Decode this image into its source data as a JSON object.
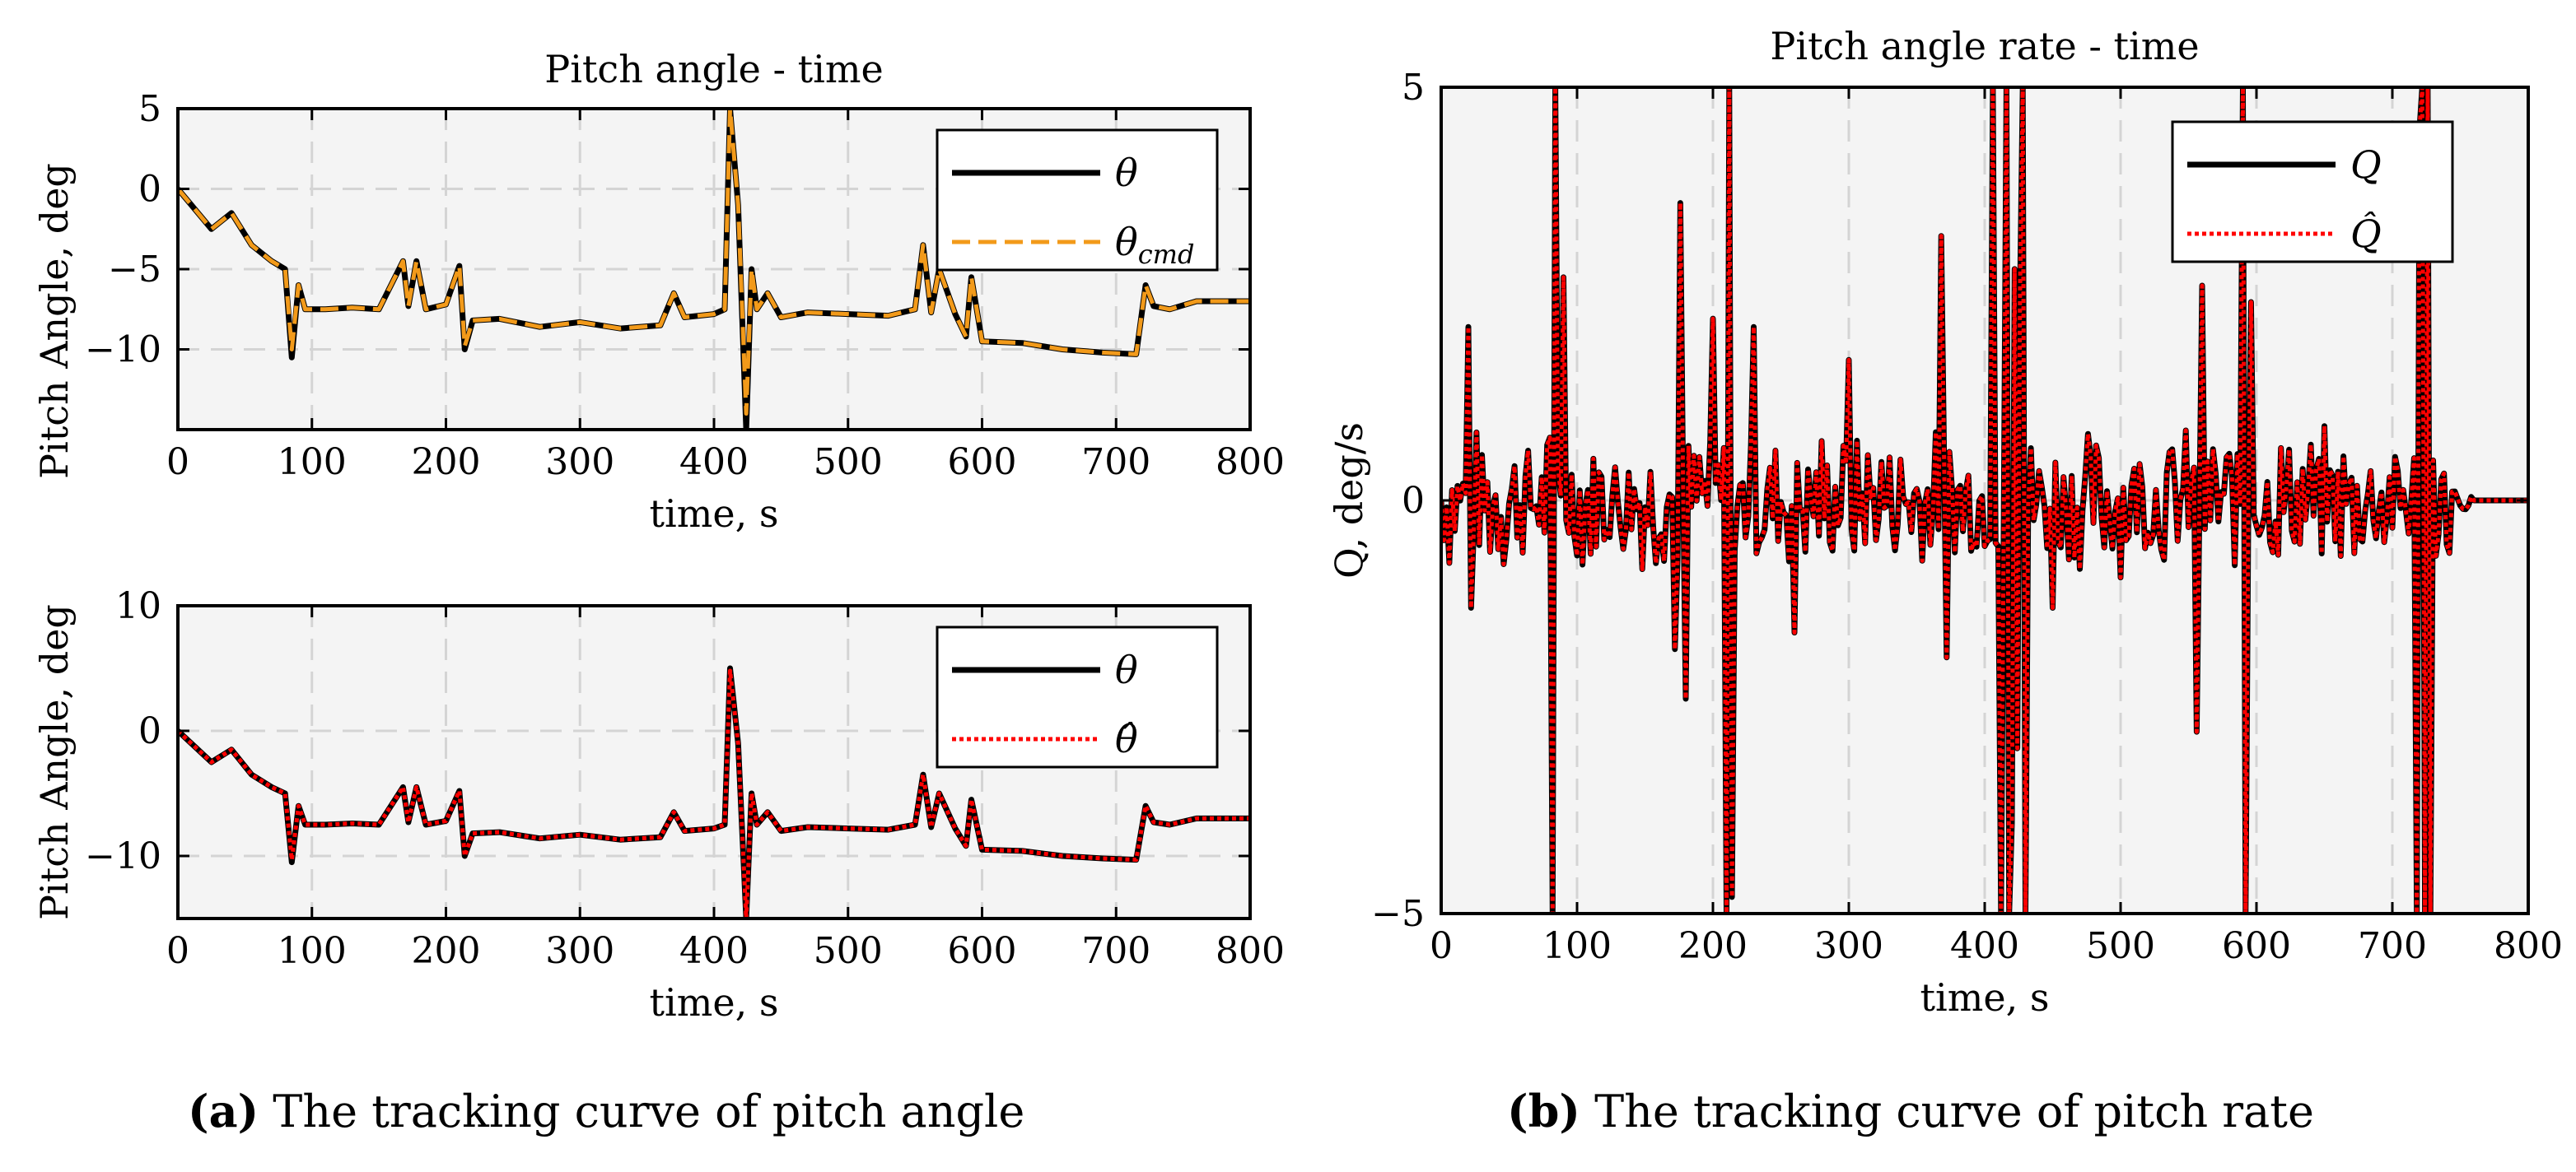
{
  "captions": {
    "a": {
      "tag": "a",
      "text": "The tracking curve of pitch angle"
    },
    "b": {
      "tag": "b",
      "text": "The tracking curve of pitch rate"
    }
  },
  "colors": {
    "background": "#f4f4f4",
    "grid": "#d4d4d4",
    "black": "#000000",
    "orange": "#f29a1a",
    "red": "#ff0000"
  },
  "chart_data": [
    {
      "type": "line",
      "title": "Pitch angle - time",
      "xlabel": "time, s",
      "ylabel": "Pitch Angle, deg",
      "xlim": [
        0,
        800
      ],
      "ylim": [
        -15,
        5
      ],
      "xticks": [
        0,
        100,
        200,
        300,
        400,
        500,
        600,
        700,
        800
      ],
      "yticks": [
        5,
        0,
        -5,
        -10
      ],
      "grid": true,
      "legend": "top-right",
      "series": [
        {
          "name": "θ",
          "style": "solid",
          "color": "#000000",
          "x": [
            0,
            10,
            25,
            40,
            55,
            70,
            80,
            85,
            90,
            95,
            110,
            130,
            150,
            168,
            172,
            178,
            185,
            200,
            210,
            214,
            220,
            240,
            270,
            300,
            330,
            360,
            370,
            378,
            400,
            408,
            412,
            418,
            424,
            428,
            432,
            440,
            450,
            470,
            500,
            530,
            550,
            556,
            562,
            568,
            580,
            588,
            592,
            600,
            630,
            660,
            690,
            715,
            722,
            728,
            740,
            760,
            800
          ],
          "y": [
            0,
            -1,
            -2.5,
            -1.5,
            -3.5,
            -4.5,
            -5,
            -10.5,
            -6,
            -7.5,
            -7.5,
            -7.4,
            -7.5,
            -4.5,
            -7.3,
            -4.5,
            -7.5,
            -7.2,
            -4.8,
            -10,
            -8.2,
            -8.1,
            -8.6,
            -8.3,
            -8.7,
            -8.5,
            -6.5,
            -8,
            -7.8,
            -7.5,
            5,
            -1,
            -15,
            -5,
            -7.5,
            -6.5,
            -8,
            -7.7,
            -7.8,
            -7.9,
            -7.5,
            -3.5,
            -7.7,
            -5,
            -7.8,
            -9.2,
            -5.5,
            -9.5,
            -9.6,
            -10,
            -10.2,
            -10.3,
            -6,
            -7.3,
            -7.5,
            -7,
            -7
          ]
        },
        {
          "name": "θ_cmd",
          "style": "dashed",
          "color": "#f29a1a",
          "x": [
            0,
            10,
            25,
            40,
            55,
            70,
            80,
            85,
            90,
            95,
            110,
            130,
            150,
            168,
            172,
            178,
            185,
            200,
            210,
            214,
            220,
            240,
            270,
            300,
            330,
            360,
            370,
            378,
            400,
            408,
            412,
            418,
            424,
            428,
            432,
            440,
            450,
            470,
            500,
            530,
            550,
            556,
            562,
            568,
            580,
            588,
            592,
            600,
            630,
            660,
            690,
            715,
            722,
            728,
            740,
            760,
            800
          ],
          "y": [
            0,
            -1,
            -2.5,
            -1.5,
            -3.5,
            -4.5,
            -5,
            -10,
            -6,
            -7.5,
            -7.5,
            -7.4,
            -7.5,
            -4.5,
            -7.3,
            -4.5,
            -7.5,
            -7.2,
            -4.8,
            -9.8,
            -8.2,
            -8.1,
            -8.6,
            -8.3,
            -8.7,
            -8.5,
            -6.5,
            -8,
            -7.8,
            -7.5,
            5,
            -1,
            -14,
            -5,
            -7.5,
            -6.5,
            -8,
            -7.7,
            -7.8,
            -7.9,
            -7.5,
            -3.5,
            -7.7,
            -5,
            -7.8,
            -9.2,
            -5.5,
            -9.5,
            -9.6,
            -10,
            -10.2,
            -10.3,
            -6,
            -7.3,
            -7.5,
            -7,
            -7
          ]
        }
      ],
      "legend_entries": [
        {
          "label": "θ"
        },
        {
          "label": "θcmd"
        }
      ]
    },
    {
      "type": "line",
      "title": "",
      "xlabel": "time, s",
      "ylabel": "Pitch Angle, deg",
      "xlim": [
        0,
        800
      ],
      "ylim": [
        -15,
        10
      ],
      "xticks": [
        0,
        100,
        200,
        300,
        400,
        500,
        600,
        700,
        800
      ],
      "yticks": [
        10,
        0,
        -10
      ],
      "grid": true,
      "legend": "top-right",
      "series": [
        {
          "name": "θ",
          "style": "solid",
          "color": "#000000",
          "x": [
            0,
            10,
            25,
            40,
            55,
            70,
            80,
            85,
            90,
            95,
            110,
            130,
            150,
            168,
            172,
            178,
            185,
            200,
            210,
            214,
            220,
            240,
            270,
            300,
            330,
            360,
            370,
            378,
            400,
            408,
            412,
            418,
            424,
            428,
            432,
            440,
            450,
            470,
            500,
            530,
            550,
            556,
            562,
            568,
            580,
            588,
            592,
            600,
            630,
            660,
            690,
            715,
            722,
            728,
            740,
            760,
            800
          ],
          "y": [
            0,
            -1,
            -2.5,
            -1.5,
            -3.5,
            -4.5,
            -5,
            -10.5,
            -6,
            -7.5,
            -7.5,
            -7.4,
            -7.5,
            -4.5,
            -7.3,
            -4.5,
            -7.5,
            -7.2,
            -4.8,
            -10,
            -8.2,
            -8.1,
            -8.6,
            -8.3,
            -8.7,
            -8.5,
            -6.5,
            -8,
            -7.8,
            -7.5,
            5,
            -1,
            -15,
            -5,
            -7.5,
            -6.5,
            -8,
            -7.7,
            -7.8,
            -7.9,
            -7.5,
            -3.5,
            -7.7,
            -5,
            -7.8,
            -9.2,
            -5.5,
            -9.5,
            -9.6,
            -10,
            -10.2,
            -10.3,
            -6,
            -7.3,
            -7.5,
            -7,
            -7
          ]
        },
        {
          "name": "θ̂",
          "style": "dotted",
          "color": "#ff0000",
          "x": [
            0,
            10,
            25,
            40,
            55,
            70,
            80,
            85,
            90,
            95,
            110,
            130,
            150,
            168,
            172,
            178,
            185,
            200,
            210,
            214,
            220,
            240,
            270,
            300,
            330,
            360,
            370,
            378,
            400,
            408,
            412,
            418,
            424,
            428,
            432,
            440,
            450,
            470,
            500,
            530,
            550,
            556,
            562,
            568,
            580,
            588,
            592,
            600,
            630,
            660,
            690,
            715,
            722,
            728,
            740,
            760,
            800
          ],
          "y": [
            0,
            -1,
            -2.5,
            -1.5,
            -3.5,
            -4.5,
            -5,
            -10.3,
            -6,
            -7.5,
            -7.5,
            -7.4,
            -7.5,
            -4.5,
            -7.3,
            -4.5,
            -7.5,
            -7.2,
            -4.8,
            -10,
            -8.2,
            -8.1,
            -8.6,
            -8.3,
            -8.7,
            -8.5,
            -6.5,
            -8,
            -7.8,
            -7.5,
            4.8,
            -1,
            -15,
            -5,
            -7.5,
            -6.5,
            -8,
            -7.7,
            -7.8,
            -7.9,
            -7.5,
            -3.5,
            -7.7,
            -5,
            -7.8,
            -9.2,
            -5.5,
            -9.5,
            -9.6,
            -10,
            -10.2,
            -10.3,
            -6,
            -7.3,
            -7.5,
            -7,
            -7
          ]
        }
      ],
      "legend_entries": [
        {
          "label": "θ"
        },
        {
          "label": "θ̂"
        }
      ]
    },
    {
      "type": "line",
      "title": "Pitch angle rate - time",
      "xlabel": "time, s",
      "ylabel": "Q, deg/s",
      "xlim": [
        0,
        800
      ],
      "ylim": [
        -5,
        5
      ],
      "xticks": [
        0,
        100,
        200,
        300,
        400,
        500,
        600,
        700,
        800
      ],
      "yticks": [
        5,
        0,
        -5
      ],
      "grid": true,
      "legend": "top-right",
      "signal": {
        "x_start": 0,
        "x_step": 2,
        "base_amplitude": 0.95,
        "seed": 7,
        "quiet_from": 745,
        "flat_from": 760,
        "spikes": [
          [
            20,
            2.1
          ],
          [
            22,
            -1.3
          ],
          [
            82,
            -5
          ],
          [
            84,
            5
          ],
          [
            90,
            2.7
          ],
          [
            172,
            -1.8
          ],
          [
            176,
            3.6
          ],
          [
            180,
            -2.4
          ],
          [
            200,
            2.2
          ],
          [
            210,
            -5
          ],
          [
            212,
            5
          ],
          [
            214,
            -4.8
          ],
          [
            230,
            2.1
          ],
          [
            260,
            -1.6
          ],
          [
            300,
            1.7
          ],
          [
            368,
            3.2
          ],
          [
            372,
            -1.9
          ],
          [
            406,
            5
          ],
          [
            412,
            -5
          ],
          [
            416,
            5
          ],
          [
            418,
            -5
          ],
          [
            420,
            -3.9
          ],
          [
            422,
            2.8
          ],
          [
            424,
            -3
          ],
          [
            426,
            2.5
          ],
          [
            428,
            5
          ],
          [
            430,
            -5
          ],
          [
            450,
            -1.3
          ],
          [
            556,
            -2.8
          ],
          [
            560,
            2.6
          ],
          [
            590,
            5
          ],
          [
            592,
            -5
          ],
          [
            596,
            2.4
          ],
          [
            718,
            -5
          ],
          [
            720,
            4.5
          ],
          [
            722,
            5
          ],
          [
            724,
            -5
          ],
          [
            726,
            5
          ],
          [
            728,
            -5
          ]
        ]
      },
      "series": [
        {
          "name": "Q",
          "style": "solid",
          "color": "#000000"
        },
        {
          "name": "Q̂",
          "style": "dotted",
          "color": "#ff0000"
        }
      ],
      "legend_entries": [
        {
          "label": "Q"
        },
        {
          "label": "Q̂"
        }
      ]
    }
  ]
}
